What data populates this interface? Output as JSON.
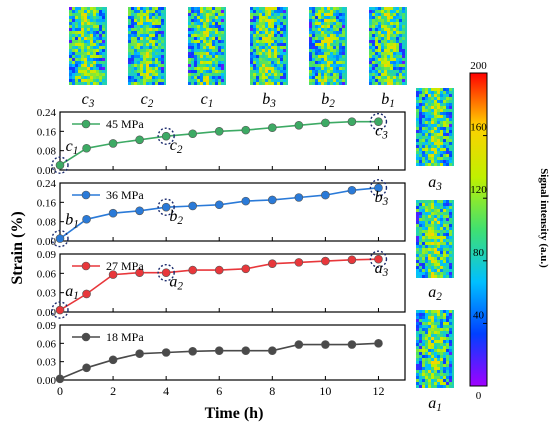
{
  "figure": {
    "ylabel": "Strain (%)",
    "xlabel": "Time (h)",
    "colorbar_label": "Signal intensity (a.u.)"
  },
  "colorbar": {
    "ticks": [
      "0",
      "40",
      "80",
      "120",
      "160",
      "200"
    ],
    "range": [
      0,
      200
    ],
    "colors": [
      "#a000ff",
      "#0040ff",
      "#00c0ff",
      "#40e070",
      "#c0f000",
      "#ffd000",
      "#ff0000"
    ]
  },
  "top_images": [
    {
      "base": "c",
      "sub": "3"
    },
    {
      "base": "c",
      "sub": "2"
    },
    {
      "base": "c",
      "sub": "1"
    },
    {
      "base": "b",
      "sub": "3"
    },
    {
      "base": "b",
      "sub": "2"
    },
    {
      "base": "b",
      "sub": "1"
    }
  ],
  "side_images": [
    {
      "base": "a",
      "sub": "3"
    },
    {
      "base": "a",
      "sub": "2"
    },
    {
      "base": "a",
      "sub": "1"
    }
  ],
  "chart_data": [
    {
      "type": "line",
      "title": "",
      "xlabel": "Time (h)",
      "ylabel": "Strain (%)",
      "xlim": [
        0,
        13
      ],
      "ylim": [
        0,
        0.24
      ],
      "yticks": [
        "0.00",
        "0.08",
        "0.16",
        "0.24"
      ],
      "series": [
        {
          "name": "45 MPa",
          "color": "#3daa64",
          "x": [
            0,
            1,
            2,
            3,
            4,
            5,
            6,
            7,
            8,
            9,
            10,
            11,
            12
          ],
          "y": [
            0.02,
            0.09,
            0.11,
            0.125,
            0.14,
            0.15,
            0.16,
            0.165,
            0.175,
            0.185,
            0.195,
            0.2,
            0.2
          ]
        }
      ],
      "annotations": [
        {
          "base": "c",
          "sub": "1",
          "x": 0
        },
        {
          "base": "c",
          "sub": "2",
          "x": 4
        },
        {
          "base": "c",
          "sub": "3",
          "x": 12
        }
      ],
      "circled_x": [
        0,
        4,
        12
      ]
    },
    {
      "type": "line",
      "title": "",
      "xlabel": "Time (h)",
      "ylabel": "Strain (%)",
      "xlim": [
        0,
        13
      ],
      "ylim": [
        0,
        0.24
      ],
      "yticks": [
        "0.00",
        "0.08",
        "0.16",
        "0.24"
      ],
      "series": [
        {
          "name": "36 MPa",
          "color": "#2a7ad8",
          "x": [
            0,
            1,
            2,
            3,
            4,
            5,
            6,
            7,
            8,
            9,
            10,
            11,
            12
          ],
          "y": [
            0.01,
            0.09,
            0.115,
            0.125,
            0.14,
            0.145,
            0.15,
            0.165,
            0.17,
            0.18,
            0.19,
            0.21,
            0.22
          ]
        }
      ],
      "annotations": [
        {
          "base": "b",
          "sub": "1",
          "x": 0
        },
        {
          "base": "b",
          "sub": "2",
          "x": 4
        },
        {
          "base": "b",
          "sub": "3",
          "x": 12
        }
      ],
      "circled_x": [
        0,
        4,
        12
      ]
    },
    {
      "type": "line",
      "title": "",
      "xlabel": "Time (h)",
      "ylabel": "Strain (%)",
      "xlim": [
        0,
        13
      ],
      "ylim": [
        0,
        0.09
      ],
      "yticks": [
        "0.00",
        "0.03",
        "0.06",
        "0.09"
      ],
      "series": [
        {
          "name": "27 MPa",
          "color": "#e8373b",
          "x": [
            0,
            1,
            2,
            3,
            4,
            5,
            6,
            7,
            8,
            9,
            10,
            11,
            12
          ],
          "y": [
            0.003,
            0.028,
            0.058,
            0.061,
            0.061,
            0.065,
            0.065,
            0.067,
            0.075,
            0.077,
            0.079,
            0.081,
            0.082
          ]
        }
      ],
      "annotations": [
        {
          "base": "a",
          "sub": "1",
          "x": 0
        },
        {
          "base": "a",
          "sub": "2",
          "x": 4
        },
        {
          "base": "a",
          "sub": "3",
          "x": 12
        }
      ],
      "circled_x": [
        0,
        4,
        12
      ]
    },
    {
      "type": "line",
      "title": "",
      "xlabel": "Time (h)",
      "ylabel": "Strain (%)",
      "xlim": [
        0,
        13
      ],
      "ylim": [
        0,
        0.09
      ],
      "yticks": [
        "0.00",
        "0.03",
        "0.06",
        "0.09"
      ],
      "xticks": [
        "0",
        "2",
        "4",
        "6",
        "8",
        "10",
        "12"
      ],
      "series": [
        {
          "name": "18 MPa",
          "color": "#4a4a4a",
          "x": [
            0,
            1,
            2,
            3,
            4,
            5,
            6,
            7,
            8,
            9,
            10,
            11,
            12
          ],
          "y": [
            0.002,
            0.02,
            0.033,
            0.043,
            0.045,
            0.047,
            0.048,
            0.048,
            0.048,
            0.058,
            0.058,
            0.058,
            0.06
          ]
        }
      ],
      "annotations": [],
      "circled_x": []
    }
  ]
}
